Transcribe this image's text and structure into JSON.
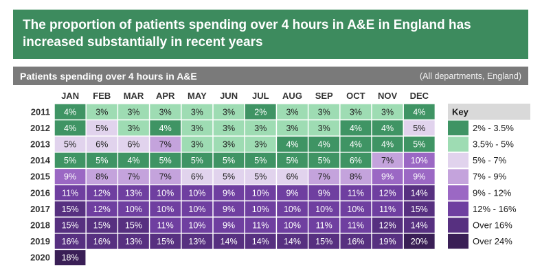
{
  "header": {
    "title": "The proportion of patients spending over 4 hours in A&E in England has increased substantially in recent years"
  },
  "subheader": {
    "title": "Patients spending over 4 hours in A&E",
    "note": "(All departments, England)"
  },
  "chart_data": {
    "type": "heatmap",
    "title": "Patients spending over 4 hours in A&E",
    "subtitle": "(All departments, England)",
    "x": [
      "JAN",
      "FEB",
      "MAR",
      "APR",
      "MAY",
      "JUN",
      "JUL",
      "AUG",
      "SEP",
      "OCT",
      "NOV",
      "DEC"
    ],
    "y": [
      "2011",
      "2012",
      "2013",
      "2014",
      "2015",
      "2016",
      "2017",
      "2018",
      "2019",
      "2020"
    ],
    "values": [
      [
        4,
        3,
        3,
        3,
        3,
        3,
        2,
        3,
        3,
        3,
        3,
        4
      ],
      [
        4,
        5,
        3,
        4,
        3,
        3,
        3,
        3,
        3,
        4,
        4,
        5
      ],
      [
        5,
        6,
        6,
        7,
        3,
        3,
        3,
        4,
        4,
        4,
        4,
        5
      ],
      [
        5,
        5,
        4,
        5,
        5,
        5,
        5,
        5,
        5,
        6,
        7,
        10
      ],
      [
        9,
        8,
        7,
        7,
        6,
        5,
        5,
        6,
        7,
        8,
        9,
        9
      ],
      [
        11,
        12,
        13,
        10,
        10,
        9,
        10,
        9,
        9,
        11,
        12,
        14
      ],
      [
        15,
        12,
        10,
        10,
        10,
        9,
        10,
        10,
        10,
        10,
        11,
        15
      ],
      [
        15,
        15,
        15,
        11,
        10,
        9,
        11,
        10,
        11,
        11,
        12,
        14
      ],
      [
        16,
        16,
        13,
        15,
        13,
        14,
        14,
        14,
        15,
        16,
        19,
        20
      ],
      [
        18
      ]
    ],
    "value_suffix": "%",
    "colors": [
      [
        0,
        1,
        1,
        1,
        1,
        1,
        0,
        1,
        1,
        1,
        1,
        0
      ],
      [
        0,
        2,
        1,
        0,
        1,
        1,
        1,
        1,
        1,
        0,
        0,
        2
      ],
      [
        2,
        2,
        2,
        3,
        1,
        1,
        1,
        0,
        0,
        0,
        0,
        0
      ],
      [
        0,
        0,
        0,
        0,
        0,
        0,
        0,
        0,
        0,
        0,
        3,
        4
      ],
      [
        4,
        3,
        3,
        3,
        2,
        2,
        2,
        2,
        3,
        3,
        4,
        4
      ],
      [
        5,
        5,
        5,
        5,
        5,
        5,
        5,
        5,
        5,
        5,
        5,
        6
      ],
      [
        6,
        5,
        5,
        5,
        5,
        5,
        5,
        5,
        5,
        5,
        5,
        6
      ],
      [
        6,
        6,
        6,
        5,
        5,
        5,
        5,
        5,
        5,
        5,
        6,
        6
      ],
      [
        6,
        6,
        6,
        6,
        6,
        6,
        6,
        6,
        6,
        6,
        6,
        7
      ],
      [
        7
      ]
    ],
    "legend": {
      "title": "Key",
      "items": [
        {
          "label": "2% - 3.5%",
          "color": "#3f9464",
          "text_color": "#ffffff"
        },
        {
          "label": "3.5% - 5%",
          "color": "#9edcb3",
          "text_color": "#222222"
        },
        {
          "label": "5% - 7%",
          "color": "#e1d3ed",
          "text_color": "#222222"
        },
        {
          "label": "7% - 9%",
          "color": "#c4a3dc",
          "text_color": "#222222"
        },
        {
          "label": "9% - 12%",
          "color": "#9b68c4",
          "text_color": "#ffffff"
        },
        {
          "label": "12% - 16%",
          "color": "#6f3fa0",
          "text_color": "#ffffff"
        },
        {
          "label": "Over 16%",
          "color": "#573080",
          "text_color": "#ffffff"
        },
        {
          "label": "Over 24%",
          "color": "#3a1f56",
          "text_color": "#ffffff"
        }
      ]
    }
  }
}
